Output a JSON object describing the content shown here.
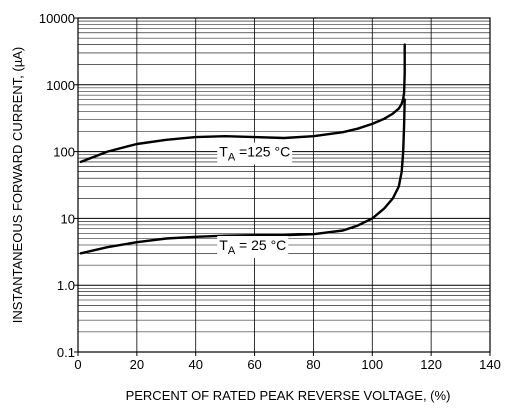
{
  "chart_data": {
    "type": "line",
    "title": "",
    "xlabel": "PERCENT OF RATED PEAK REVERSE VOLTAGE, (%)",
    "ylabel": "INSTANTANEOUS FORWARD CURRENT, (µA)",
    "xlim": [
      0,
      140
    ],
    "ylim": [
      0.1,
      10000
    ],
    "yscale": "log",
    "grid": true,
    "x_ticks": [
      0,
      20,
      40,
      60,
      80,
      100,
      120,
      140
    ],
    "x_tick_labels": [
      "0",
      "20",
      "40",
      "60",
      "80",
      "100",
      "120",
      "140"
    ],
    "y_ticks": [
      0.1,
      1,
      10,
      100,
      1000,
      10000
    ],
    "y_tick_labels": [
      "0.1",
      "1.0",
      "10",
      "100",
      "1000",
      "10000"
    ],
    "series": [
      {
        "x": [
          1,
          10,
          20,
          30,
          40,
          50,
          60,
          70,
          80,
          90,
          95,
          100,
          104,
          107,
          109,
          110,
          110.5,
          110.8,
          111,
          111
        ],
        "y": [
          70,
          100,
          130,
          150,
          165,
          170,
          165,
          160,
          170,
          195,
          220,
          260,
          310,
          370,
          440,
          520,
          620,
          760,
          1500,
          4000
        ]
      },
      {
        "x": [
          1,
          10,
          20,
          30,
          40,
          50,
          60,
          70,
          80,
          90,
          95,
          100,
          104,
          107,
          109,
          110,
          110.5,
          110.8,
          111
        ],
        "y": [
          3,
          3.7,
          4.4,
          5.0,
          5.3,
          5.5,
          5.6,
          5.6,
          5.8,
          6.6,
          7.8,
          10,
          14,
          20,
          30,
          50,
          100,
          250,
          600
        ]
      }
    ],
    "annotations": [
      {
        "id": "t125",
        "base": "T",
        "sub": "A",
        "text": " =125  °C"
      },
      {
        "id": "t25",
        "base": "T",
        "sub": "A",
        "text": " = 25  °C"
      }
    ]
  }
}
